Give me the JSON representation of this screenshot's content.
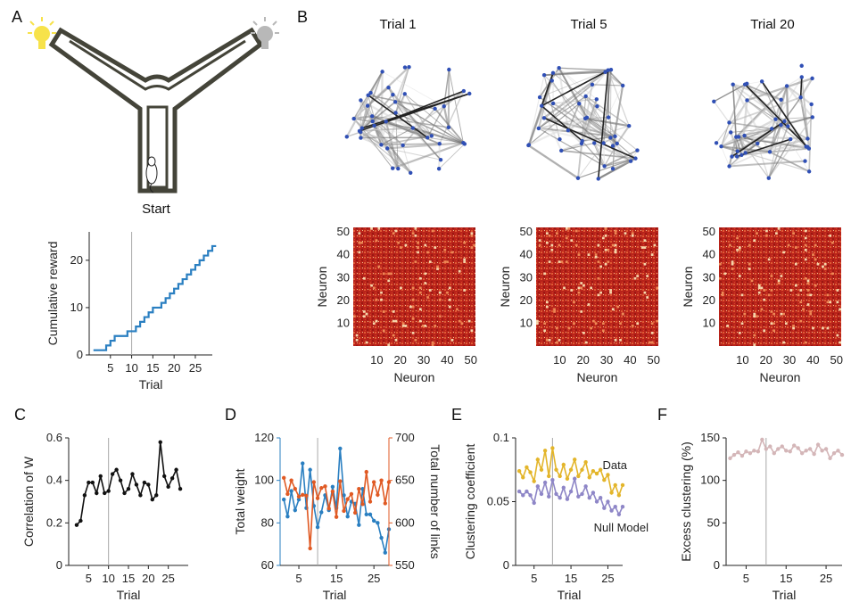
{
  "panel_labels": [
    "A",
    "B",
    "C",
    "D",
    "E",
    "F"
  ],
  "panelA": {
    "maze_start_label": "Start",
    "light_left_color": "#f7e24a",
    "light_right_color": "#b8b8b8"
  },
  "panelB": {
    "titles": [
      "Trial 1",
      "Trial 5",
      "Trial 20"
    ],
    "xlabel": "Neuron",
    "ylabel": "Neuron",
    "ticks": [
      "10",
      "20",
      "30",
      "40",
      "50"
    ]
  },
  "chart_data": [
    {
      "id": "A",
      "type": "line",
      "style": "step",
      "xlabel": "Trial",
      "ylabel": "Cumulative reward",
      "xlim": [
        0,
        29
      ],
      "ylim": [
        0,
        26
      ],
      "xticks": [
        5,
        10,
        15,
        20,
        25
      ],
      "yticks": [
        0,
        10,
        20
      ],
      "vline": 10,
      "color": "#2a7fc1",
      "x": [
        1,
        2,
        3,
        4,
        5,
        6,
        7,
        8,
        9,
        10,
        11,
        12,
        13,
        14,
        15,
        16,
        17,
        18,
        19,
        20,
        21,
        22,
        23,
        24,
        25,
        26,
        27,
        28,
        29
      ],
      "values": [
        1,
        1,
        1,
        2,
        3,
        4,
        4,
        4,
        5,
        5,
        6,
        7,
        8,
        9,
        10,
        10,
        11,
        12,
        13,
        14,
        15,
        16,
        17,
        18,
        19,
        20,
        21,
        22,
        23
      ]
    },
    {
      "id": "C",
      "type": "line",
      "xlabel": "Trial",
      "ylabel": "Correlation of W",
      "xlim": [
        0,
        30
      ],
      "ylim": [
        0,
        0.6
      ],
      "xticks": [
        5,
        10,
        15,
        20,
        25
      ],
      "yticks": [
        0,
        0.2,
        0.4,
        0.6
      ],
      "vline": 10,
      "color": "#111111",
      "x": [
        2,
        3,
        4,
        5,
        6,
        7,
        8,
        9,
        10,
        11,
        12,
        13,
        14,
        15,
        16,
        17,
        18,
        19,
        20,
        21,
        22,
        23,
        24,
        25,
        26,
        27,
        28
      ],
      "values": [
        0.19,
        0.21,
        0.33,
        0.39,
        0.39,
        0.34,
        0.42,
        0.34,
        0.35,
        0.43,
        0.45,
        0.4,
        0.34,
        0.36,
        0.43,
        0.38,
        0.33,
        0.39,
        0.38,
        0.31,
        0.33,
        0.58,
        0.42,
        0.37,
        0.41,
        0.45,
        0.36
      ]
    },
    {
      "id": "D",
      "type": "line",
      "xlabel": "Trial",
      "ylabel": "Total weight",
      "y2label": "Total number of links",
      "xlim": [
        0,
        29
      ],
      "ylim": [
        60,
        120
      ],
      "y2lim": [
        550,
        700
      ],
      "xticks": [
        5,
        15,
        25
      ],
      "yticks": [
        60,
        80,
        100,
        120
      ],
      "y2ticks": [
        550,
        600,
        650,
        700
      ],
      "vline": 10,
      "series": [
        {
          "name": "Total weight",
          "axis": "left",
          "color": "#2a7fc1",
          "x": [
            1,
            2,
            3,
            4,
            5,
            6,
            7,
            8,
            9,
            10,
            11,
            12,
            13,
            14,
            15,
            16,
            17,
            18,
            19,
            20,
            21,
            22,
            23,
            24,
            25,
            26,
            27,
            28,
            29
          ],
          "values": [
            91,
            83,
            95,
            86,
            91,
            108,
            87,
            105,
            88,
            78,
            85,
            93,
            86,
            97,
            87,
            115,
            93,
            83,
            90,
            89,
            79,
            96,
            84,
            84,
            81,
            80,
            73,
            66,
            77
          ]
        },
        {
          "name": "Total number of links",
          "axis": "right",
          "color": "#e05a24",
          "x": [
            1,
            2,
            3,
            4,
            5,
            6,
            7,
            8,
            9,
            10,
            11,
            12,
            13,
            14,
            15,
            16,
            17,
            18,
            19,
            20,
            21,
            22,
            23,
            24,
            25,
            26,
            27,
            28,
            29
          ],
          "values": [
            653,
            634,
            650,
            640,
            631,
            633,
            632,
            570,
            648,
            629,
            641,
            643,
            617,
            637,
            607,
            649,
            614,
            628,
            634,
            612,
            640,
            622,
            660,
            625,
            648,
            633,
            650,
            623,
            648
          ]
        }
      ]
    },
    {
      "id": "E",
      "type": "line",
      "xlabel": "Trial",
      "ylabel": "Clustering coefficient",
      "xlim": [
        0,
        29
      ],
      "ylim": [
        0,
        0.1
      ],
      "xticks": [
        5,
        15,
        25
      ],
      "yticks": [
        0,
        0.05,
        0.1
      ],
      "vline": 10,
      "series": [
        {
          "name": "Data",
          "color": "#e3b52a",
          "x": [
            1,
            2,
            3,
            4,
            5,
            6,
            7,
            8,
            9,
            10,
            11,
            12,
            13,
            14,
            15,
            16,
            17,
            18,
            19,
            20,
            21,
            22,
            23,
            24,
            25,
            26,
            27,
            28,
            29
          ],
          "values": [
            0.074,
            0.069,
            0.077,
            0.073,
            0.066,
            0.083,
            0.075,
            0.09,
            0.07,
            0.092,
            0.075,
            0.07,
            0.079,
            0.068,
            0.075,
            0.083,
            0.07,
            0.075,
            0.081,
            0.069,
            0.074,
            0.072,
            0.075,
            0.067,
            0.071,
            0.057,
            0.063,
            0.055,
            0.063
          ]
        },
        {
          "name": "Null Model",
          "color": "#8e86c7",
          "x": [
            1,
            2,
            3,
            4,
            5,
            6,
            7,
            8,
            9,
            10,
            11,
            12,
            13,
            14,
            15,
            16,
            17,
            18,
            19,
            20,
            21,
            22,
            23,
            24,
            25,
            26,
            27,
            28,
            29
          ],
          "values": [
            0.058,
            0.055,
            0.058,
            0.055,
            0.049,
            0.062,
            0.056,
            0.065,
            0.054,
            0.067,
            0.056,
            0.053,
            0.061,
            0.052,
            0.058,
            0.068,
            0.054,
            0.056,
            0.062,
            0.053,
            0.057,
            0.05,
            0.053,
            0.045,
            0.05,
            0.043,
            0.046,
            0.04,
            0.046
          ]
        }
      ]
    },
    {
      "id": "F",
      "type": "line",
      "xlabel": "Trial",
      "ylabel": "Excess clustering (%)",
      "xlim": [
        0,
        29
      ],
      "ylim": [
        0,
        150
      ],
      "xticks": [
        5,
        15,
        25
      ],
      "yticks": [
        0,
        50,
        100,
        150
      ],
      "vline": 10,
      "color": "#d4b6b8",
      "x": [
        1,
        2,
        3,
        4,
        5,
        6,
        7,
        8,
        9,
        10,
        11,
        12,
        13,
        14,
        15,
        16,
        17,
        18,
        19,
        20,
        21,
        22,
        23,
        24,
        25,
        26,
        27,
        28,
        29
      ],
      "values": [
        126,
        130,
        133,
        129,
        134,
        132,
        135,
        134,
        148,
        137,
        140,
        132,
        137,
        140,
        135,
        134,
        141,
        138,
        132,
        135,
        137,
        131,
        142,
        135,
        137,
        126,
        132,
        135,
        130
      ]
    }
  ]
}
